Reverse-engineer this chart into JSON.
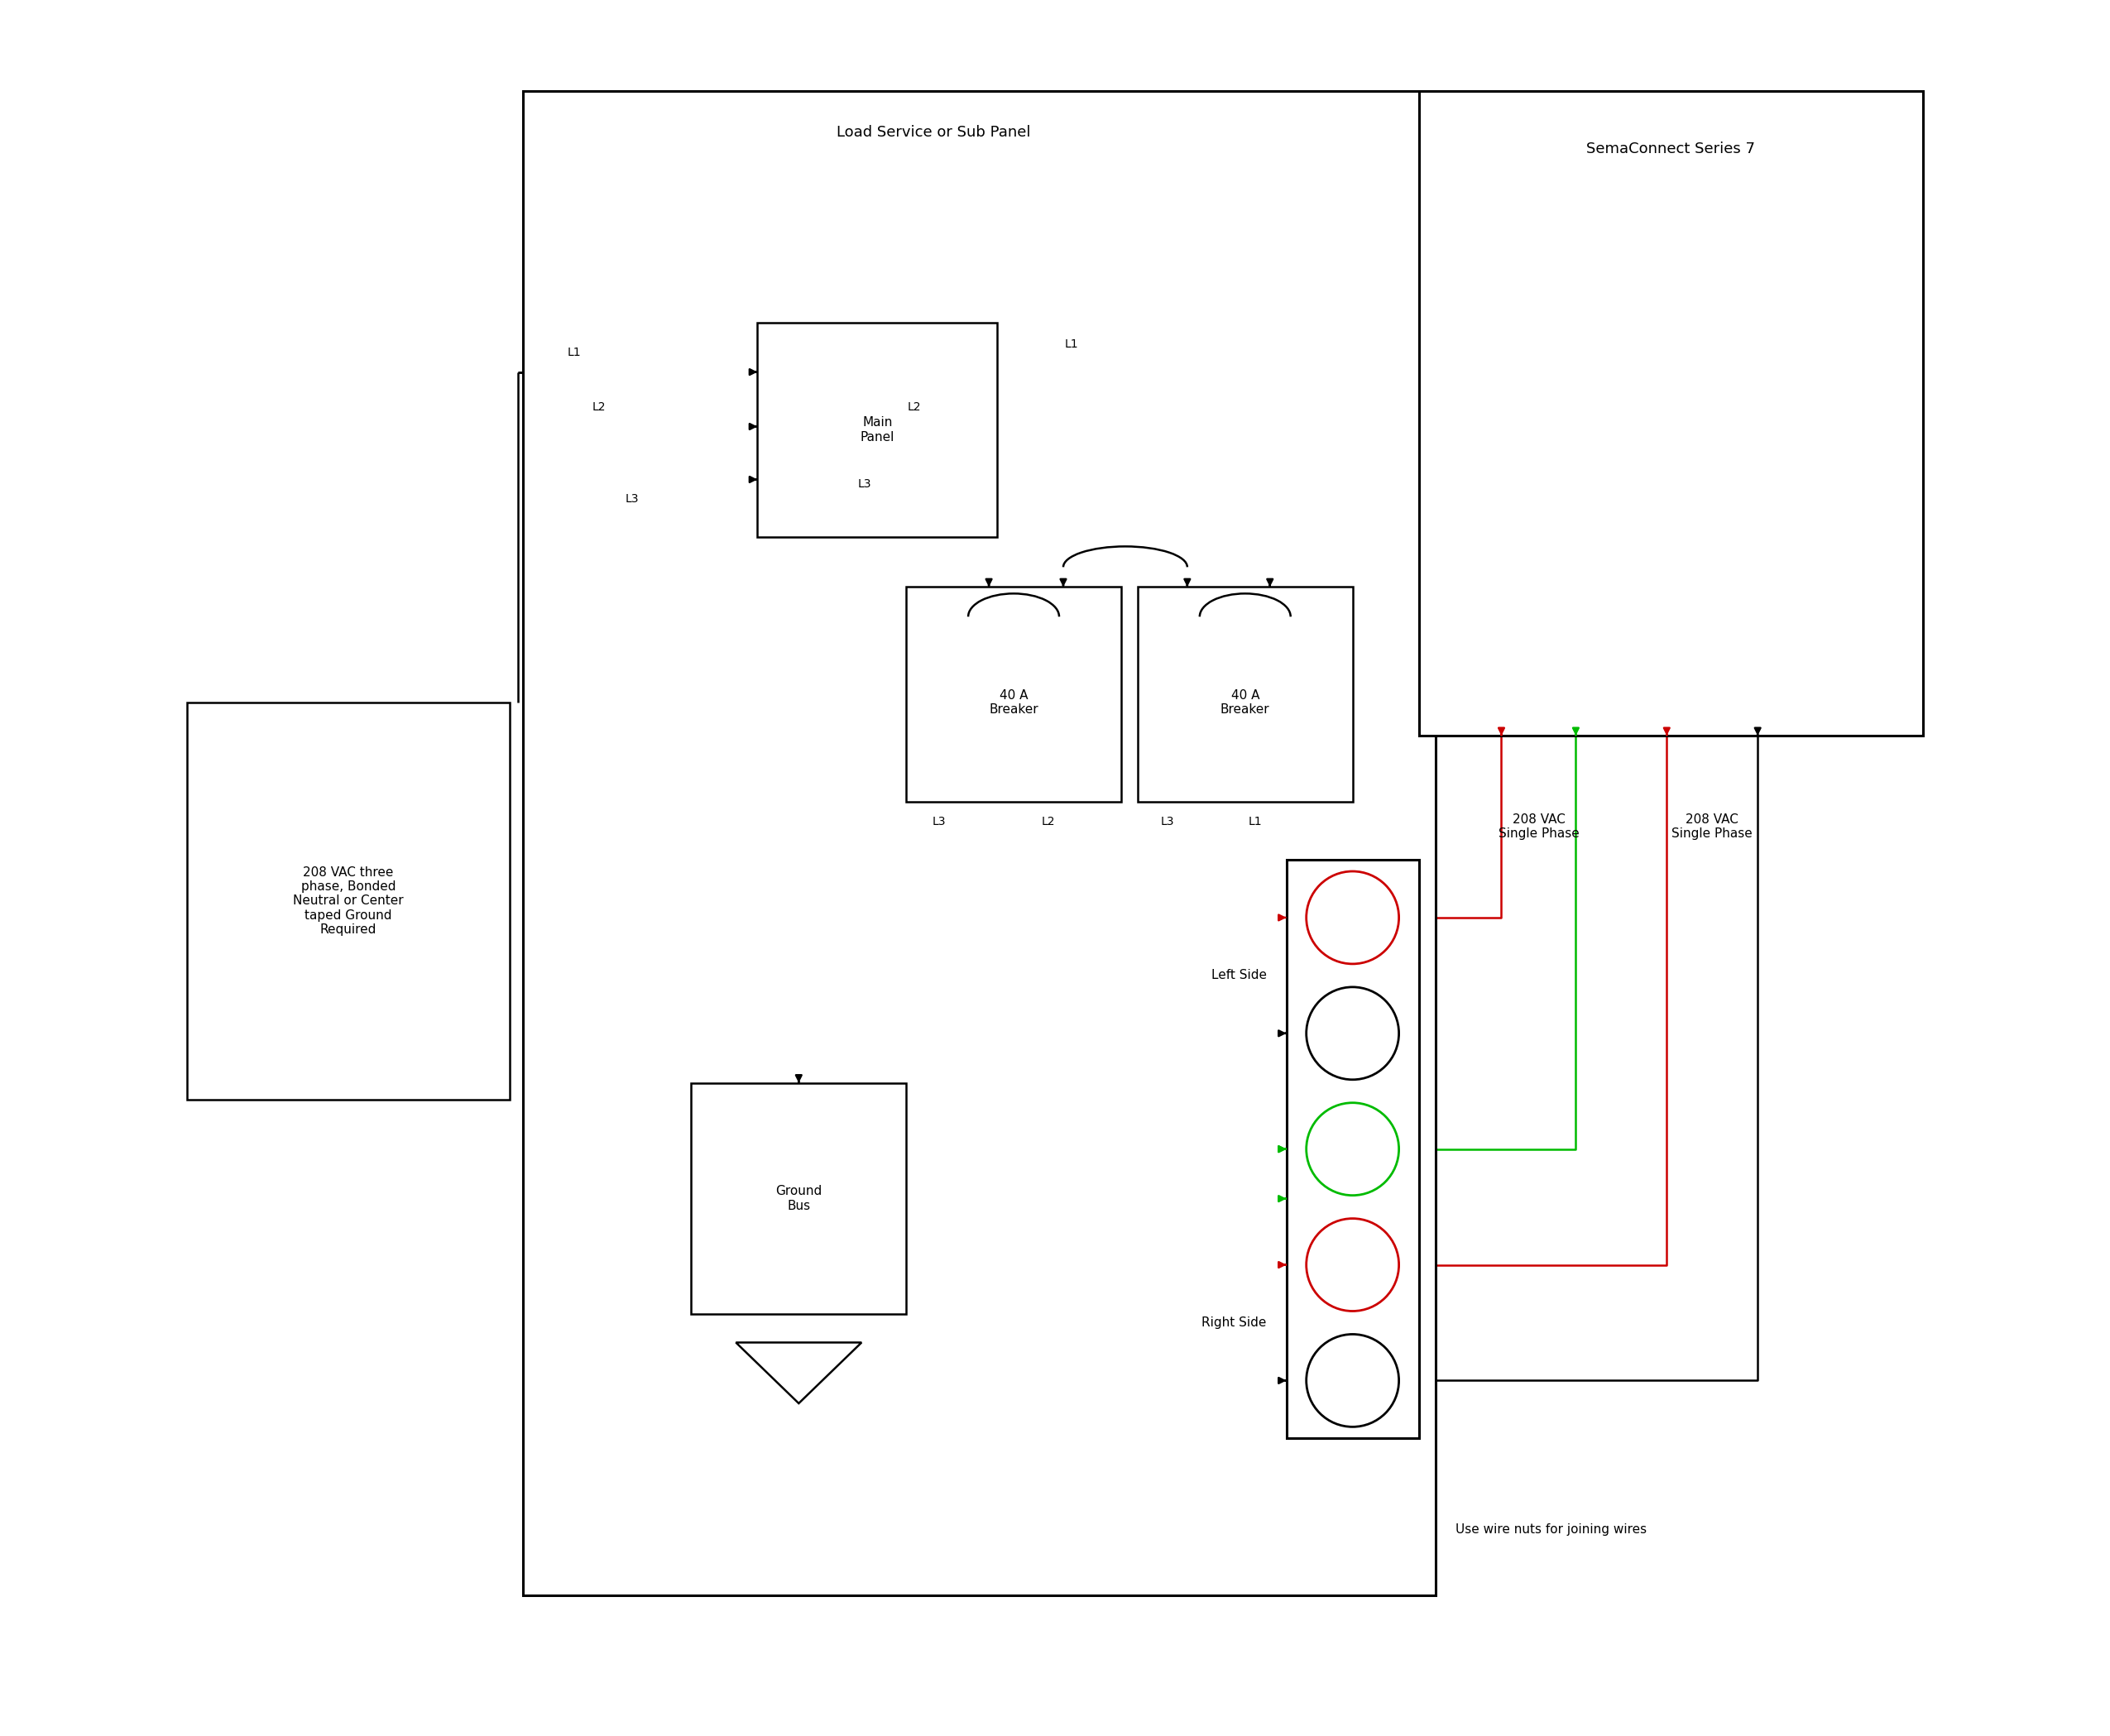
{
  "bg_color": "#ffffff",
  "line_color": "#000000",
  "red_color": "#cc0000",
  "green_color": "#00bb00",
  "load_panel_label": "Load Service or Sub Panel",
  "sema_label": "SemaConnect Series 7",
  "source_label": "208 VAC three\nphase, Bonded\nNeutral or Center\ntaped Ground\nRequired",
  "ground_bus_label": "Ground\nBus",
  "breaker_label": "40 A\nBreaker",
  "left_side_label": "Left Side",
  "right_side_label": "Right Side",
  "vac_label1": "208 VAC\nSingle Phase",
  "vac_label2": "208 VAC\nSingle Phase",
  "wire_nuts_label": "Use wire nuts for joining wires",
  "main_panel_label": "Main\nPanel"
}
